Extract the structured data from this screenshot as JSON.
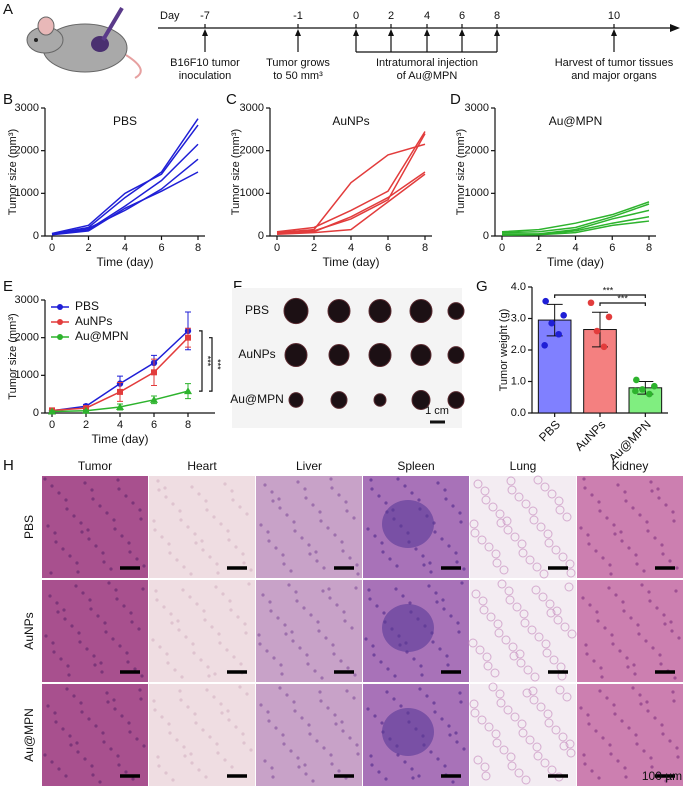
{
  "timeline": {
    "label": "A",
    "day_label": "Day",
    "days": [
      -7,
      -1,
      0,
      2,
      4,
      6,
      8,
      10
    ],
    "events": [
      [
        "B16F10 tumor",
        "inoculation"
      ],
      [
        "Tumor grows",
        "to 50 mm³"
      ],
      [
        "Intratumoral injection",
        "of Au@MPN"
      ],
      [
        "Harvest of tumor tissues",
        "and major organs"
      ]
    ]
  },
  "chart_data": [
    {
      "label": "B",
      "type": "line",
      "title": "PBS",
      "xlabel": "Time (day)",
      "ylabel": "Tumor size (mm³)",
      "x": [
        0,
        2,
        4,
        6,
        8
      ],
      "xlim": [
        0,
        8
      ],
      "xticks": [
        0,
        2,
        4,
        6,
        8
      ],
      "ylim": [
        0,
        3000
      ],
      "yticks": [
        0,
        1000,
        2000,
        3000
      ],
      "series": [
        {
          "color": "#1f1fd6",
          "values": [
            50,
            200,
            900,
            1500,
            2750
          ]
        },
        {
          "color": "#1f1fd6",
          "values": [
            60,
            250,
            1000,
            1450,
            2600
          ]
        },
        {
          "color": "#1f1fd6",
          "values": [
            40,
            150,
            700,
            1300,
            2150
          ]
        },
        {
          "color": "#1f1fd6",
          "values": [
            50,
            180,
            600,
            1100,
            1800
          ]
        },
        {
          "color": "#1f1fd6",
          "values": [
            30,
            120,
            650,
            1050,
            1500
          ]
        }
      ]
    },
    {
      "label": "C",
      "type": "line",
      "title": "AuNPs",
      "xlabel": "Time (day)",
      "ylabel": "Tumor size (mm³)",
      "x": [
        0,
        2,
        4,
        6,
        8
      ],
      "xlim": [
        0,
        8
      ],
      "xticks": [
        0,
        2,
        4,
        6,
        8
      ],
      "ylim": [
        0,
        3000
      ],
      "yticks": [
        0,
        1000,
        2000,
        3000
      ],
      "series": [
        {
          "color": "#e23c3c",
          "values": [
            80,
            150,
            1250,
            1900,
            2150
          ]
        },
        {
          "color": "#e23c3c",
          "values": [
            100,
            200,
            600,
            1050,
            2450
          ]
        },
        {
          "color": "#e23c3c",
          "values": [
            60,
            120,
            400,
            850,
            2400
          ]
        },
        {
          "color": "#e23c3c",
          "values": [
            50,
            100,
            450,
            900,
            1500
          ]
        },
        {
          "color": "#e23c3c",
          "values": [
            40,
            80,
            150,
            800,
            1450
          ]
        }
      ]
    },
    {
      "label": "D",
      "type": "line",
      "title": "Au@MPN",
      "xlabel": "Time (day)",
      "ylabel": "Tumor size (mm³)",
      "x": [
        0,
        2,
        4,
        6,
        8
      ],
      "xlim": [
        0,
        8
      ],
      "xticks": [
        0,
        2,
        4,
        6,
        8
      ],
      "ylim": [
        0,
        3000
      ],
      "yticks": [
        0,
        1000,
        2000,
        3000
      ],
      "series": [
        {
          "color": "#2db32d",
          "values": [
            100,
            150,
            300,
            500,
            800
          ]
        },
        {
          "color": "#2db32d",
          "values": [
            80,
            100,
            200,
            450,
            750
          ]
        },
        {
          "color": "#2db32d",
          "values": [
            50,
            50,
            150,
            400,
            600
          ]
        },
        {
          "color": "#2db32d",
          "values": [
            30,
            40,
            120,
            300,
            450
          ]
        },
        {
          "color": "#2db32d",
          "values": [
            20,
            30,
            80,
            250,
            350
          ]
        }
      ]
    },
    {
      "label": "E",
      "type": "line",
      "xlabel": "Time (day)",
      "ylabel": "Tumor size (mm³)",
      "legend": "top-left",
      "x": [
        0,
        2,
        4,
        6,
        8
      ],
      "xlim": [
        0,
        8
      ],
      "xticks": [
        0,
        2,
        4,
        6,
        8
      ],
      "ylim": [
        0,
        3000
      ],
      "yticks": [
        0,
        1000,
        2000,
        3000
      ],
      "series": [
        {
          "name": "PBS",
          "color": "#1f1fd6",
          "marker": "circle",
          "values": [
            60,
            180,
            780,
            1330,
            2180
          ],
          "errors": [
            30,
            50,
            200,
            200,
            500
          ]
        },
        {
          "name": "AuNPs",
          "color": "#e23c3c",
          "marker": "square",
          "values": [
            70,
            130,
            560,
            1080,
            2000
          ],
          "errors": [
            30,
            40,
            250,
            350,
            250
          ]
        },
        {
          "name": "Au@MPN",
          "color": "#2db32d",
          "marker": "triangle",
          "values": [
            40,
            60,
            160,
            350,
            580
          ],
          "errors": [
            20,
            20,
            80,
            100,
            200
          ]
        }
      ],
      "annotations": [
        "***",
        "***"
      ]
    },
    {
      "label": "G",
      "type": "bar",
      "ylabel": "Tumor weight (g)",
      "categories": [
        "PBS",
        "AuNPs",
        "Au@MPN"
      ],
      "values": [
        2.95,
        2.65,
        0.8
      ],
      "errors": [
        0.5,
        0.55,
        0.2
      ],
      "colors": [
        "#8080ff",
        "#f48080",
        "#80ee80"
      ],
      "point_colors": [
        "#1f1fd6",
        "#e23c3c",
        "#2db32d"
      ],
      "points": [
        [
          3.55,
          3.1,
          2.85,
          2.5,
          2.15
        ],
        [
          3.5,
          3.05,
          2.6,
          2.1
        ],
        [
          1.05,
          0.85,
          0.75,
          0.6,
          0.7
        ]
      ],
      "ylim": [
        0,
        4
      ],
      "yticks": [
        {
          "value": 0,
          "label": "0.0"
        },
        {
          "value": 1,
          "label": "1.0"
        },
        {
          "value": 2,
          "label": "2.0"
        },
        {
          "value": 3,
          "label": "3.0"
        },
        {
          "value": 4,
          "label": "4.0"
        }
      ],
      "annotations": [
        "***",
        "***"
      ]
    }
  ],
  "photo": {
    "label": "F",
    "rows": [
      "PBS",
      "AuNPs",
      "Au@MPN"
    ],
    "scale_bar": "1 cm"
  },
  "histology": {
    "label": "H",
    "columns": [
      "Tumor",
      "Heart",
      "Liver",
      "Spleen",
      "Lung",
      "Kidney"
    ],
    "rows": [
      "PBS",
      "AuNPs",
      "Au@MPN"
    ],
    "scale_bar": "100 µm"
  }
}
